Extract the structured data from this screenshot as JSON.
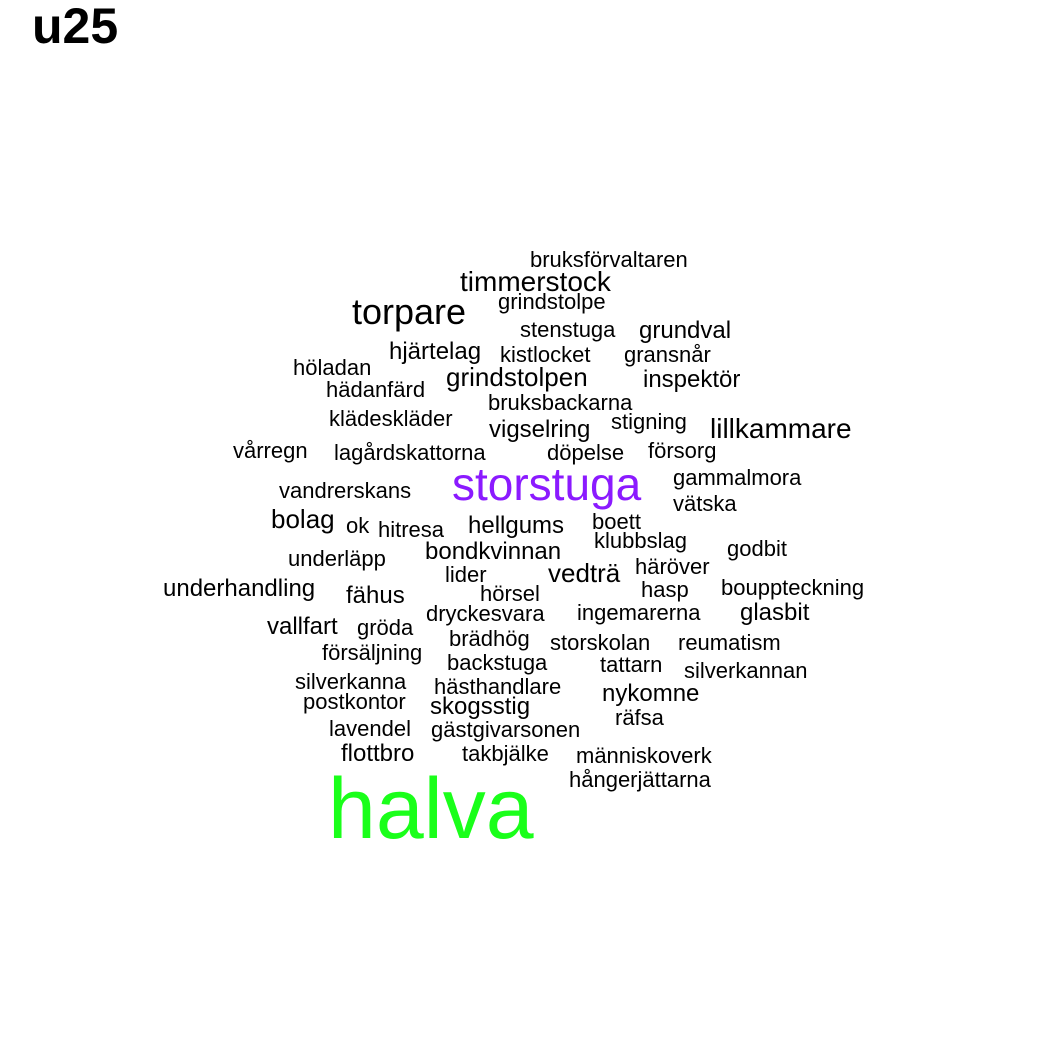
{
  "chart_data": {
    "type": "wordcloud",
    "title": "u25",
    "words": [
      {
        "text": "halva",
        "weight": 6.5,
        "color": "#1aff1a"
      },
      {
        "text": "storstuga",
        "weight": 3.6,
        "color": "#8b1aff"
      },
      {
        "text": "torpare",
        "weight": 2.6,
        "color": "#000000"
      },
      {
        "text": "timmerstock",
        "weight": 2.2,
        "color": "#000000"
      },
      {
        "text": "lillkammare",
        "weight": 2.2,
        "color": "#000000"
      },
      {
        "text": "grindstolpen",
        "weight": 2.1,
        "color": "#000000"
      },
      {
        "text": "bondkvinnan",
        "weight": 2.0,
        "color": "#000000"
      },
      {
        "text": "vedträ",
        "weight": 2.1,
        "color": "#000000"
      },
      {
        "text": "bolag",
        "weight": 2.1,
        "color": "#000000"
      },
      {
        "text": "hellgums",
        "weight": 2.0,
        "color": "#000000"
      },
      {
        "text": "hjärtelag",
        "weight": 2.0,
        "color": "#000000"
      },
      {
        "text": "grundval",
        "weight": 2.0,
        "color": "#000000"
      },
      {
        "text": "vigselring",
        "weight": 2.0,
        "color": "#000000"
      },
      {
        "text": "underhandling",
        "weight": 2.0,
        "color": "#000000"
      },
      {
        "text": "fähus",
        "weight": 2.0,
        "color": "#000000"
      },
      {
        "text": "vallfart",
        "weight": 2.0,
        "color": "#000000"
      },
      {
        "text": "glasbit",
        "weight": 2.0,
        "color": "#000000"
      },
      {
        "text": "nykomne",
        "weight": 2.0,
        "color": "#000000"
      },
      {
        "text": "flottbro",
        "weight": 2.0,
        "color": "#000000"
      },
      {
        "text": "inspektör",
        "weight": 2.0,
        "color": "#000000"
      },
      {
        "text": "skogsstig",
        "weight": 2.0,
        "color": "#000000"
      },
      {
        "text": "ingemarerna",
        "weight": 1.9,
        "color": "#000000"
      },
      {
        "text": "hästhandlare",
        "weight": 1.9,
        "color": "#000000"
      },
      {
        "text": "bruksförvaltaren",
        "weight": 1.8,
        "color": "#000000"
      },
      {
        "text": "grindstolpe",
        "weight": 1.8,
        "color": "#000000"
      },
      {
        "text": "stenstuga",
        "weight": 1.8,
        "color": "#000000"
      },
      {
        "text": "kistlocket",
        "weight": 1.8,
        "color": "#000000"
      },
      {
        "text": "gransnår",
        "weight": 1.8,
        "color": "#000000"
      },
      {
        "text": "höladan",
        "weight": 1.8,
        "color": "#000000"
      },
      {
        "text": "hädanfärd",
        "weight": 1.8,
        "color": "#000000"
      },
      {
        "text": "bruksbackarna",
        "weight": 1.8,
        "color": "#000000"
      },
      {
        "text": "klädeskläder",
        "weight": 1.8,
        "color": "#000000"
      },
      {
        "text": "stigning",
        "weight": 1.8,
        "color": "#000000"
      },
      {
        "text": "vårregn",
        "weight": 1.8,
        "color": "#000000"
      },
      {
        "text": "lagårdskattorna",
        "weight": 1.8,
        "color": "#000000"
      },
      {
        "text": "döpelse",
        "weight": 1.8,
        "color": "#000000"
      },
      {
        "text": "försorg",
        "weight": 1.8,
        "color": "#000000"
      },
      {
        "text": "gammalmora",
        "weight": 1.8,
        "color": "#000000"
      },
      {
        "text": "vandrerskans",
        "weight": 1.8,
        "color": "#000000"
      },
      {
        "text": "vätska",
        "weight": 1.8,
        "color": "#000000"
      },
      {
        "text": "ok",
        "weight": 1.8,
        "color": "#000000"
      },
      {
        "text": "hitresa",
        "weight": 1.8,
        "color": "#000000"
      },
      {
        "text": "boett",
        "weight": 1.8,
        "color": "#000000"
      },
      {
        "text": "klubbslag",
        "weight": 1.8,
        "color": "#000000"
      },
      {
        "text": "godbit",
        "weight": 1.8,
        "color": "#000000"
      },
      {
        "text": "underläpp",
        "weight": 1.8,
        "color": "#000000"
      },
      {
        "text": "häröver",
        "weight": 1.8,
        "color": "#000000"
      },
      {
        "text": "lider",
        "weight": 1.8,
        "color": "#000000"
      },
      {
        "text": "hörsel",
        "weight": 1.8,
        "color": "#000000"
      },
      {
        "text": "hasp",
        "weight": 1.8,
        "color": "#000000"
      },
      {
        "text": "bouppteckning",
        "weight": 1.8,
        "color": "#000000"
      },
      {
        "text": "dryckesvara",
        "weight": 1.8,
        "color": "#000000"
      },
      {
        "text": "gröda",
        "weight": 1.8,
        "color": "#000000"
      },
      {
        "text": "brädhög",
        "weight": 1.8,
        "color": "#000000"
      },
      {
        "text": "storskolan",
        "weight": 1.8,
        "color": "#000000"
      },
      {
        "text": "reumatism",
        "weight": 1.8,
        "color": "#000000"
      },
      {
        "text": "försäljning",
        "weight": 1.8,
        "color": "#000000"
      },
      {
        "text": "backstuga",
        "weight": 1.8,
        "color": "#000000"
      },
      {
        "text": "tattarn",
        "weight": 1.8,
        "color": "#000000"
      },
      {
        "text": "silverkannan",
        "weight": 1.8,
        "color": "#000000"
      },
      {
        "text": "silverkanna",
        "weight": 1.8,
        "color": "#000000"
      },
      {
        "text": "postkontor",
        "weight": 1.8,
        "color": "#000000"
      },
      {
        "text": "räfsa",
        "weight": 1.8,
        "color": "#000000"
      },
      {
        "text": "lavendel",
        "weight": 1.8,
        "color": "#000000"
      },
      {
        "text": "gästgivarsonen",
        "weight": 1.8,
        "color": "#000000"
      },
      {
        "text": "takbjälke",
        "weight": 1.8,
        "color": "#000000"
      },
      {
        "text": "människoverk",
        "weight": 1.8,
        "color": "#000000"
      },
      {
        "text": "hångerjättarna",
        "weight": 1.8,
        "color": "#000000"
      }
    ]
  }
}
